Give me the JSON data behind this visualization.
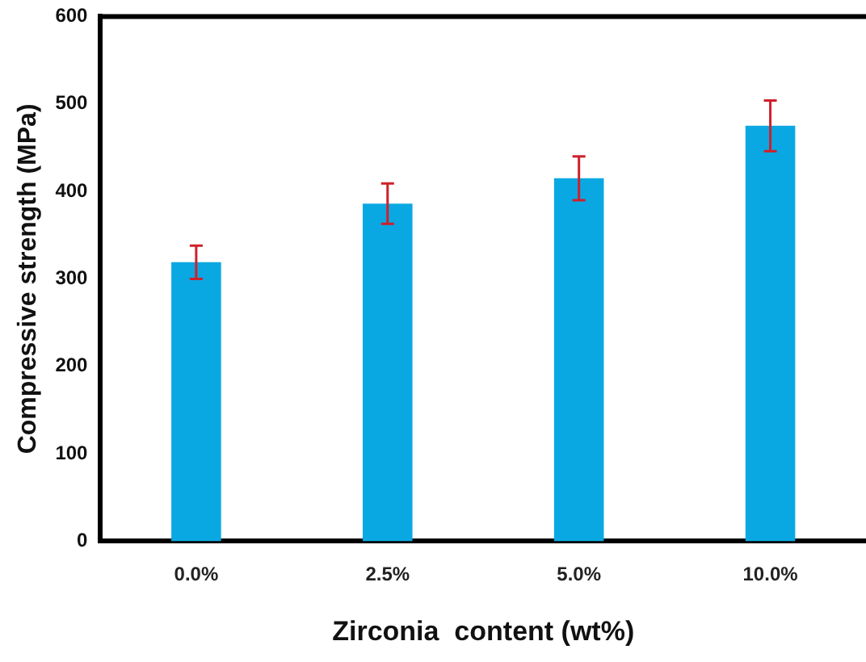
{
  "chart_data": {
    "type": "bar",
    "xlabel": "Zirconia  content (wt%)",
    "ylabel": "Compressive strength (MPa)",
    "categories": [
      "0.0%",
      "2.5%",
      "5.0%",
      "10.0%"
    ],
    "values": [
      319,
      386,
      415,
      475
    ],
    "errors": [
      19,
      23,
      25,
      29
    ],
    "color": "#0aa8e2",
    "ylim": [
      0,
      600
    ],
    "yticks": [
      0,
      100,
      200,
      300,
      400,
      500,
      600
    ],
    "grid": false,
    "legend": false
  }
}
